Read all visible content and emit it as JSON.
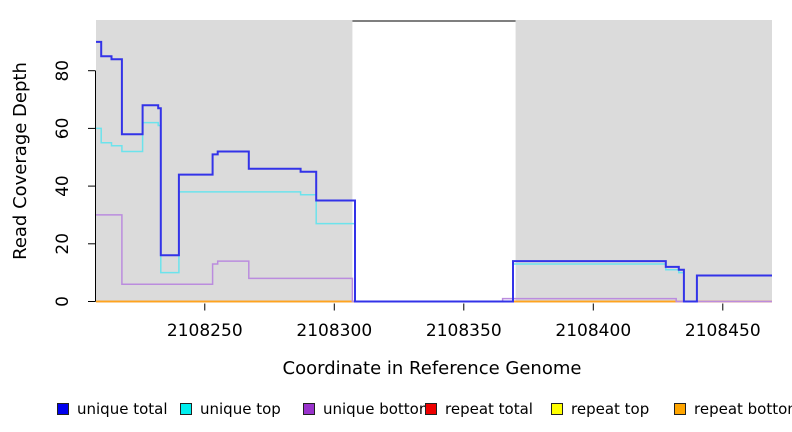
{
  "chart_data": {
    "type": "line",
    "title": "",
    "xlabel": "Coordinate in Reference Genome",
    "ylabel": "Read Coverage Depth",
    "xlim": [
      2108208,
      2108469
    ],
    "ylim": [
      0,
      97.5
    ],
    "x_ticks": [
      2108250,
      2108300,
      2108350,
      2108400,
      2108450
    ],
    "x_tick_labels": [
      "2108250",
      "2108300",
      "2108350",
      "2108400",
      "2108450"
    ],
    "y_ticks": [
      0,
      20,
      40,
      60,
      80
    ],
    "y_tick_labels": [
      "0",
      "20",
      "40",
      "60",
      "80"
    ],
    "grid": false,
    "step_interpolation": true,
    "background_bands": [
      {
        "name": "assayable-region-left",
        "from": 2108208,
        "to": 2108307,
        "color": "#DBDBDB"
      },
      {
        "name": "assayable-region-right",
        "from": 2108370,
        "to": 2108469,
        "color": "#DBDBDB"
      }
    ],
    "gap_top_line": {
      "from": 2108307,
      "to": 2108370,
      "color": "#7F7F7F"
    },
    "series": [
      {
        "name": "repeat top",
        "color": "#FFFF00",
        "width": 1.5,
        "points": [
          [
            2108208,
            0
          ],
          [
            2108469,
            0
          ]
        ]
      },
      {
        "name": "repeat total",
        "color": "#E05A78",
        "width": 1.5,
        "points": [
          [
            2108208,
            0
          ],
          [
            2108469,
            0
          ]
        ]
      },
      {
        "name": "repeat bottom",
        "color": "#FFA41E",
        "width": 1.8,
        "points": [
          [
            2108208,
            0
          ],
          [
            2108432,
            0
          ]
        ]
      },
      {
        "name": "unique bottom",
        "color": "#BB8CDE",
        "width": 1.5,
        "points": [
          [
            2108208,
            30
          ],
          [
            2108218,
            6
          ],
          [
            2108253,
            13
          ],
          [
            2108255,
            14
          ],
          [
            2108267,
            8
          ],
          [
            2108307,
            0
          ],
          [
            2108365,
            1
          ],
          [
            2108432,
            0
          ],
          [
            2108469,
            0
          ]
        ]
      },
      {
        "name": "unique top",
        "color": "#6CE3EC",
        "width": 1.5,
        "points": [
          [
            2108208,
            60
          ],
          [
            2108210,
            55
          ],
          [
            2108214,
            54
          ],
          [
            2108218,
            52
          ],
          [
            2108226,
            62
          ],
          [
            2108232,
            61
          ],
          [
            2108233,
            10
          ],
          [
            2108240,
            38
          ],
          [
            2108287,
            37
          ],
          [
            2108293,
            27
          ],
          [
            2108308,
            0
          ],
          [
            2108369,
            13
          ],
          [
            2108428,
            11
          ],
          [
            2108433,
            10
          ],
          [
            2108435,
            0
          ],
          [
            2108440,
            9
          ],
          [
            2108469,
            9
          ]
        ]
      },
      {
        "name": "unique total",
        "color": "#3333E8",
        "width": 2,
        "points": [
          [
            2108208,
            90
          ],
          [
            2108210,
            85
          ],
          [
            2108214,
            84
          ],
          [
            2108218,
            58
          ],
          [
            2108226,
            68
          ],
          [
            2108232,
            67
          ],
          [
            2108233,
            16
          ],
          [
            2108240,
            44
          ],
          [
            2108253,
            51
          ],
          [
            2108255,
            52
          ],
          [
            2108267,
            46
          ],
          [
            2108287,
            45
          ],
          [
            2108293,
            35
          ],
          [
            2108308,
            0
          ],
          [
            2108369,
            14
          ],
          [
            2108428,
            12
          ],
          [
            2108433,
            11
          ],
          [
            2108435,
            0
          ],
          [
            2108440,
            9
          ],
          [
            2108469,
            9
          ]
        ]
      }
    ]
  },
  "legend": {
    "items": [
      {
        "label": "unique total",
        "swatch_color": "#0000EE"
      },
      {
        "label": "unique top",
        "swatch_color": "#00EEEE"
      },
      {
        "label": "unique bottom",
        "swatch_color": "#9933CC"
      },
      {
        "label": "repeat total",
        "swatch_color": "#EE0000"
      },
      {
        "label": "repeat top",
        "swatch_color": "#FFFF00"
      },
      {
        "label": "repeat bottom",
        "swatch_color": "#FFA500"
      }
    ]
  }
}
